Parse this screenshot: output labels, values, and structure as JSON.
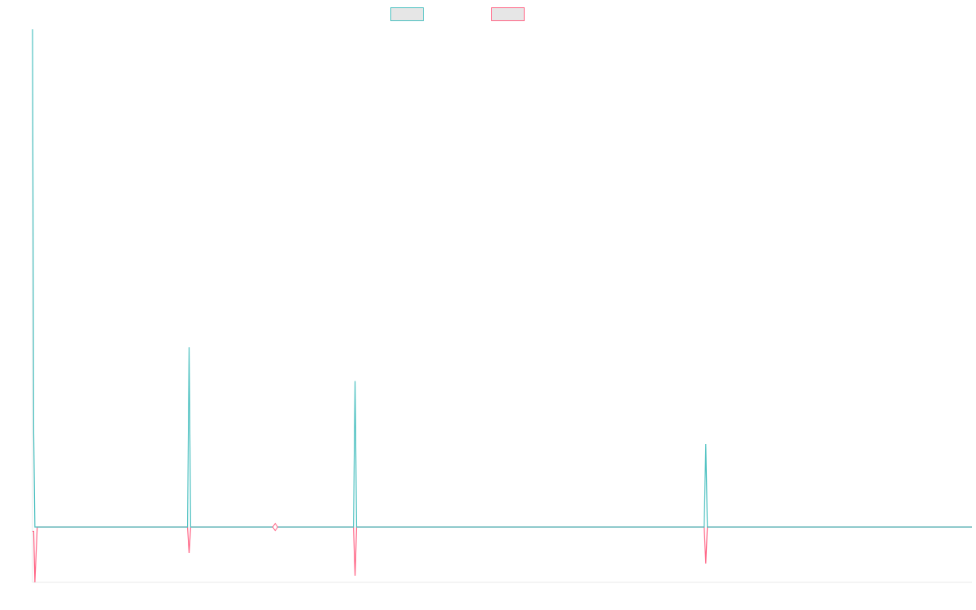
{
  "chart_data": {
    "type": "line",
    "title": "",
    "xlabel": "",
    "ylabel": "",
    "grid": false,
    "legend_placement": "top-center",
    "colors": {
      "background": "#ffffff",
      "axis": "#e8e8e8",
      "legend_fill": "#e6e6e6"
    },
    "x": [
      0,
      0.15,
      0.3,
      0.6,
      0.75,
      19.8,
      20,
      20.2,
      31,
      41,
      41.2,
      41.4,
      85.8,
      86,
      86.2,
      120
    ],
    "xlim": [
      0,
      120
    ],
    "ylim": [
      -10,
      90
    ],
    "series": [
      {
        "name": "",
        "color": "#4bc0c0",
        "values": [
          90,
          17,
          0,
          0,
          0,
          0,
          32.5,
          0,
          0,
          0,
          26.4,
          0,
          0,
          15,
          0,
          0
        ]
      },
      {
        "name": "",
        "color": "#ff6384",
        "values": [
          -0.8,
          -0.8,
          -10,
          0,
          0,
          0,
          -4.7,
          0,
          0,
          0,
          -8.8,
          0,
          0,
          -6.6,
          0,
          0
        ]
      }
    ],
    "markers": [
      {
        "x": 31,
        "y": 0,
        "shape": "diamond",
        "stroke": "#ff6384"
      }
    ]
  }
}
